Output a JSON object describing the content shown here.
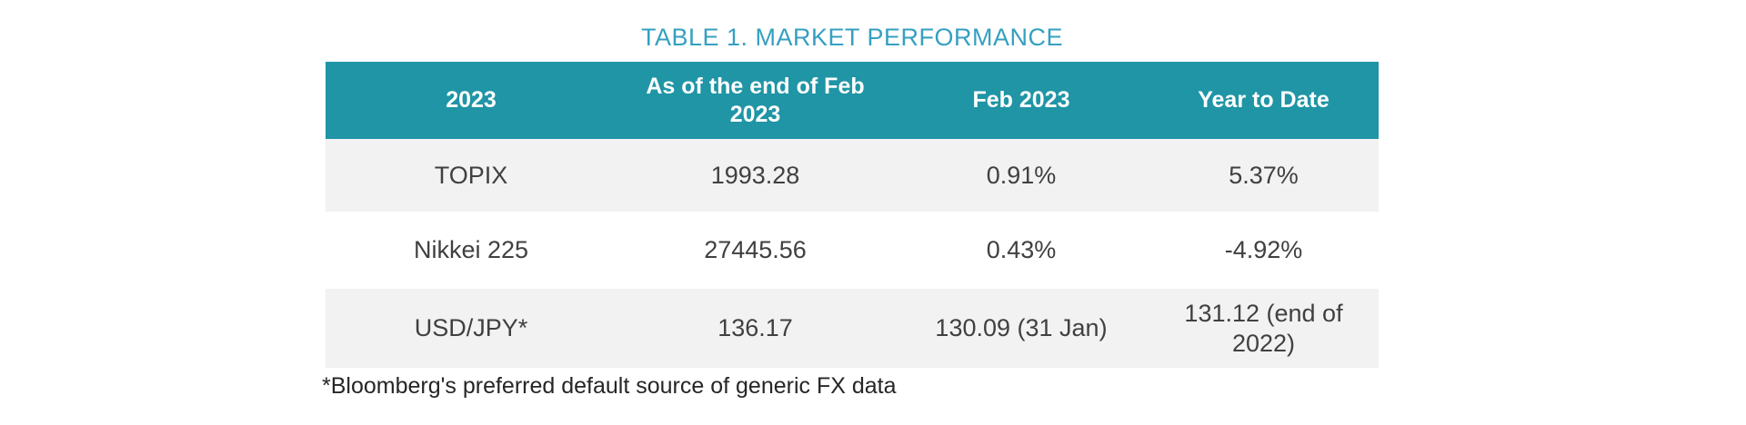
{
  "title": "TABLE 1. MARKET PERFORMANCE",
  "table": {
    "columns": [
      "2023",
      "As of the end of Feb 2023",
      "Feb 2023",
      "Year to Date"
    ],
    "rows": [
      [
        "TOPIX",
        "1993.28",
        "0.91%",
        "5.37%"
      ],
      [
        "Nikkei 225",
        "27445.56",
        "0.43%",
        "-4.92%"
      ],
      [
        "USD/JPY*",
        "136.17",
        "130.09 (31 Jan)",
        "131.12 (end of 2022)"
      ]
    ]
  },
  "footnote": "*Bloomberg's preferred default source of generic FX data",
  "colors": {
    "header_bg": "#1f95a6",
    "title_color": "#35a0c0",
    "row_alt_bg": "#f2f2f2",
    "cell_text": "#404040",
    "footnote_text": "#262626"
  }
}
